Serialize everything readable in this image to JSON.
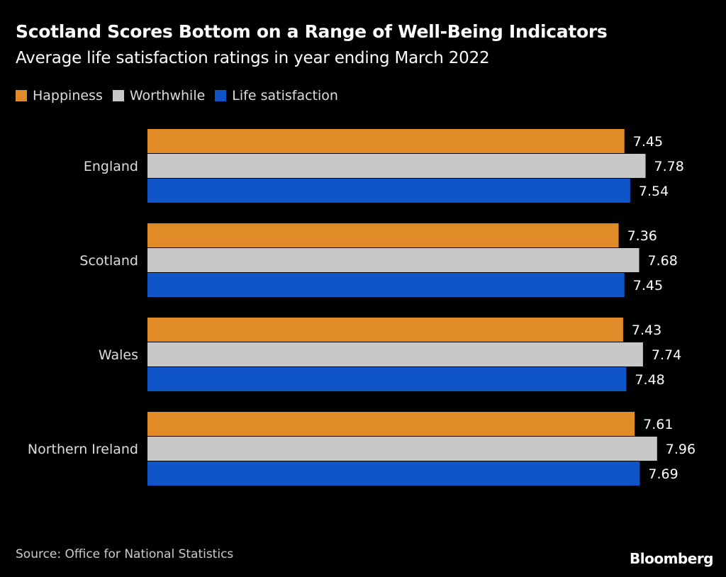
{
  "chart_data": {
    "type": "bar",
    "orientation": "horizontal",
    "title": "Scotland Scores Bottom on a Range of Well-Being Indicators",
    "subtitle": "Average life satisfaction ratings in year ending March 2022",
    "categories": [
      "England",
      "Scotland",
      "Wales",
      "Northern Ireland"
    ],
    "series": [
      {
        "name": "Happiness",
        "color": "#e08a28",
        "values": [
          7.45,
          7.36,
          7.43,
          7.61
        ]
      },
      {
        "name": "Worthwhile",
        "color": "#c8c8c8",
        "values": [
          7.78,
          7.68,
          7.74,
          7.96
        ]
      },
      {
        "name": "Life satisfaction",
        "color": "#0f55c8",
        "values": [
          7.54,
          7.45,
          7.48,
          7.69
        ]
      }
    ],
    "xlim": [
      0,
      8
    ],
    "grid": false,
    "legend_position": "top-left",
    "data_labels": true
  },
  "footer": {
    "source": "Source: Office for National Statistics",
    "logo": "Bloomberg"
  }
}
